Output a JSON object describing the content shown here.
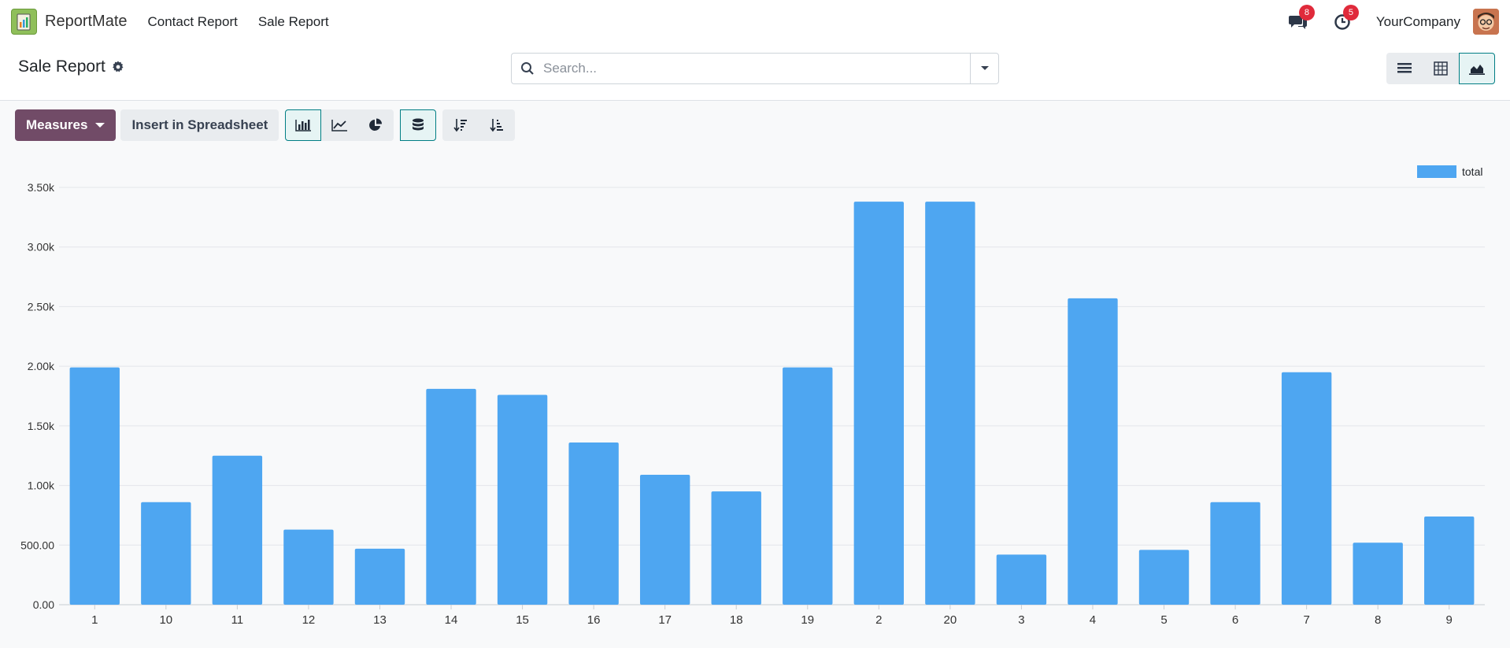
{
  "navbar": {
    "app_name": "ReportMate",
    "links": [
      "Contact Report",
      "Sale Report"
    ],
    "messages_count": "8",
    "activities_count": "5",
    "company": "YourCompany"
  },
  "control": {
    "breadcrumb": "Sale Report",
    "search_placeholder": "Search..."
  },
  "toolbar": {
    "measures_label": "Measures",
    "insert_label": "Insert in Spreadsheet"
  },
  "colors": {
    "bar": "#4ea6f1",
    "accent": "#714b67",
    "active": "#017e84",
    "badge": "#e02a3b"
  },
  "chart_data": {
    "type": "bar",
    "categories": [
      "1",
      "10",
      "11",
      "12",
      "13",
      "14",
      "15",
      "16",
      "17",
      "18",
      "19",
      "2",
      "20",
      "3",
      "4",
      "5",
      "6",
      "7",
      "8",
      "9"
    ],
    "series": [
      {
        "name": "total",
        "values": [
          1990,
          860,
          1250,
          630,
          470,
          1810,
          1760,
          1360,
          1090,
          950,
          1990,
          3380,
          3380,
          420,
          2570,
          460,
          860,
          1950,
          520,
          740
        ]
      }
    ],
    "y_ticks": [
      "0.00",
      "500.00",
      "1.00k",
      "1.50k",
      "2.00k",
      "2.50k",
      "3.00k",
      "3.50k"
    ],
    "ylim": [
      0,
      3500
    ],
    "grid": true,
    "legend": "top-right"
  }
}
